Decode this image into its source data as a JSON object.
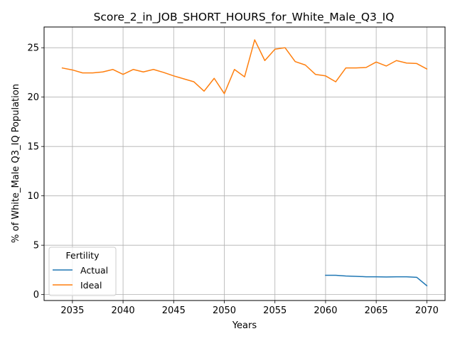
{
  "chart_data": {
    "type": "line",
    "title": "Score_2_in_JOB_SHORT_HOURS_for_White_Male_Q3_IQ",
    "xlabel": "Years",
    "ylabel": "% of White_Male Q3_IQ Population",
    "xlim": [
      2032.2,
      2071.8
    ],
    "ylim": [
      -0.6,
      27.1
    ],
    "xticks": [
      2035,
      2040,
      2045,
      2050,
      2055,
      2060,
      2065,
      2070
    ],
    "yticks": [
      0,
      5,
      10,
      15,
      20,
      25
    ],
    "grid": true,
    "legend": {
      "title": "Fertility",
      "placement": "lower-left"
    },
    "series": [
      {
        "name": "Actual",
        "color": "#1f77b4",
        "x": [
          2060,
          2061,
          2062,
          2063,
          2064,
          2065,
          2066,
          2067,
          2068,
          2069,
          2070
        ],
        "values": [
          1.95,
          1.95,
          1.88,
          1.85,
          1.8,
          1.8,
          1.78,
          1.8,
          1.8,
          1.75,
          0.9
        ]
      },
      {
        "name": "Ideal",
        "color": "#ff7f0e",
        "x": [
          2034,
          2035,
          2036,
          2037,
          2038,
          2039,
          2040,
          2041,
          2042,
          2043,
          2044,
          2045,
          2046,
          2047,
          2048,
          2049,
          2050,
          2051,
          2052,
          2053,
          2054,
          2055,
          2056,
          2057,
          2058,
          2059,
          2060,
          2061,
          2062,
          2063,
          2064,
          2065,
          2066,
          2067,
          2068,
          2069,
          2070
        ],
        "values": [
          22.95,
          22.75,
          22.45,
          22.45,
          22.55,
          22.8,
          22.3,
          22.8,
          22.55,
          22.8,
          22.5,
          22.15,
          21.85,
          21.55,
          20.6,
          21.9,
          20.35,
          22.8,
          22.05,
          25.8,
          23.7,
          24.85,
          25.0,
          23.6,
          23.25,
          22.3,
          22.15,
          21.55,
          22.95,
          22.95,
          23.0,
          23.55,
          23.15,
          23.7,
          23.45,
          23.4,
          22.85
        ]
      }
    ]
  }
}
